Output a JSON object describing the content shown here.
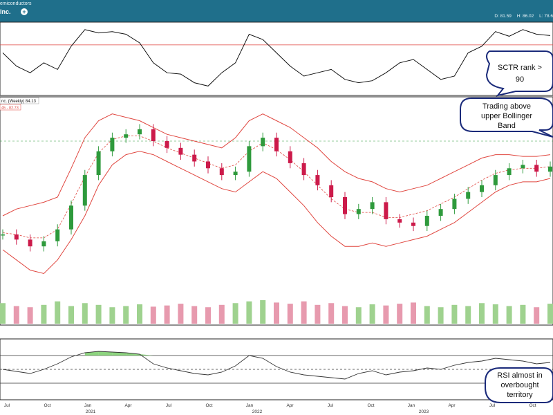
{
  "header": {
    "sector": "emiconductors",
    "symbol": "Inc.",
    "plus_icon": "plus-circle-icon",
    "stats": [
      "D: 81.59",
      "H: 86.02",
      "L: 78.6"
    ]
  },
  "legend": {
    "price_label": "nc. (Weekly) 84.13",
    "bb_label": "45 - 82.73"
  },
  "callouts": {
    "sctr": [
      "SCTR rank >",
      "90"
    ],
    "bollinger": [
      "Trading above",
      "upper Bollinger",
      "Band"
    ],
    "rsi": [
      "RSI almost in",
      "overbought",
      "territory"
    ]
  },
  "colors": {
    "header_bg": "#1f6f8b",
    "up": "#2e9a3c",
    "down": "#cc1a4a",
    "band": "#e0463f",
    "callout_stroke": "#1a2a7a",
    "rsi_fill": "#7fcf70"
  },
  "chart_data": [
    {
      "type": "line",
      "name": "SCTR",
      "x": [
        "2020-06",
        "2020-07",
        "2020-08",
        "2020-09",
        "2020-10",
        "2020-11",
        "2020-12",
        "2021-01",
        "2021-02",
        "2021-03",
        "2021-04",
        "2021-05",
        "2021-06",
        "2021-07",
        "2021-08",
        "2021-09",
        "2021-10",
        "2021-11",
        "2021-12",
        "2022-01",
        "2022-02",
        "2022-03",
        "2022-04",
        "2022-05",
        "2022-06",
        "2022-07",
        "2022-08",
        "2022-09",
        "2022-10",
        "2022-11",
        "2022-12",
        "2023-01",
        "2023-02",
        "2023-03",
        "2023-04",
        "2023-05",
        "2023-06",
        "2023-07",
        "2023-08",
        "2023-09",
        "2023-10"
      ],
      "values": [
        60,
        40,
        30,
        45,
        35,
        70,
        95,
        90,
        92,
        88,
        75,
        45,
        30,
        28,
        15,
        10,
        30,
        45,
        88,
        80,
        60,
        40,
        25,
        30,
        35,
        20,
        15,
        18,
        30,
        45,
        50,
        35,
        20,
        25,
        60,
        70,
        92,
        85,
        95,
        88,
        86
      ],
      "reference_line": 72
    },
    {
      "type": "candlestick",
      "name": "Price (Weekly)",
      "x": [
        "2020-06",
        "2020-07",
        "2020-08",
        "2020-09",
        "2020-10",
        "2020-11",
        "2020-12",
        "2021-01",
        "2021-02",
        "2021-03",
        "2021-04",
        "2021-05",
        "2021-06",
        "2021-07",
        "2021-08",
        "2021-09",
        "2021-10",
        "2021-11",
        "2021-12",
        "2022-01",
        "2022-02",
        "2022-03",
        "2022-04",
        "2022-05",
        "2022-06",
        "2022-07",
        "2022-08",
        "2022-09",
        "2022-10",
        "2022-11",
        "2022-12",
        "2023-01",
        "2023-02",
        "2023-03",
        "2023-04",
        "2023-05",
        "2023-06",
        "2023-07",
        "2023-08",
        "2023-09",
        "2023-10"
      ],
      "close": [
        33,
        30,
        26,
        29,
        36,
        50,
        68,
        82,
        90,
        92,
        95,
        88,
        84,
        80,
        76,
        72,
        68,
        70,
        85,
        90,
        82,
        75,
        68,
        62,
        55,
        45,
        48,
        52,
        42,
        40,
        38,
        44,
        48,
        54,
        58,
        62,
        68,
        72,
        74,
        70,
        73
      ],
      "upper_band": [
        44,
        48,
        50,
        52,
        55,
        72,
        90,
        100,
        104,
        102,
        100,
        96,
        92,
        90,
        88,
        86,
        84,
        90,
        100,
        104,
        100,
        96,
        90,
        84,
        76,
        70,
        66,
        64,
        60,
        58,
        60,
        62,
        66,
        70,
        74,
        78,
        80,
        80,
        79,
        79,
        80
      ],
      "lower_band": [
        24,
        18,
        12,
        10,
        18,
        30,
        44,
        62,
        74,
        80,
        82,
        80,
        76,
        72,
        68,
        64,
        60,
        58,
        64,
        70,
        66,
        58,
        50,
        40,
        32,
        26,
        26,
        28,
        26,
        28,
        30,
        32,
        36,
        40,
        46,
        52,
        58,
        62,
        64,
        64,
        66
      ],
      "middle_band": [
        34,
        33,
        31,
        31,
        36,
        51,
        67,
        81,
        89,
        91,
        91,
        88,
        84,
        81,
        78,
        75,
        72,
        74,
        82,
        87,
        83,
        77,
        70,
        62,
        54,
        48,
        46,
        46,
        43,
        43,
        45,
        47,
        51,
        55,
        60,
        65,
        69,
        71,
        72,
        72,
        73
      ],
      "reference_line": 88,
      "ylim": [
        0,
        110
      ]
    },
    {
      "type": "bar",
      "name": "Volume",
      "x": [
        "2020-06",
        "2020-07",
        "2020-08",
        "2020-09",
        "2020-10",
        "2020-11",
        "2020-12",
        "2021-01",
        "2021-02",
        "2021-03",
        "2021-04",
        "2021-05",
        "2021-06",
        "2021-07",
        "2021-08",
        "2021-09",
        "2021-10",
        "2021-11",
        "2021-12",
        "2022-01",
        "2022-02",
        "2022-03",
        "2022-04",
        "2022-05",
        "2022-06",
        "2022-07",
        "2022-08",
        "2022-09",
        "2022-10",
        "2022-11",
        "2022-12",
        "2023-01",
        "2023-02",
        "2023-03",
        "2023-04",
        "2023-05",
        "2023-06",
        "2023-07",
        "2023-08",
        "2023-09",
        "2023-10"
      ],
      "values": [
        35,
        30,
        28,
        32,
        38,
        30,
        35,
        32,
        28,
        30,
        33,
        29,
        31,
        34,
        30,
        28,
        32,
        35,
        38,
        40,
        36,
        34,
        38,
        32,
        35,
        30,
        28,
        33,
        31,
        34,
        36,
        30,
        28,
        32,
        30,
        35,
        33,
        30,
        32,
        28,
        34
      ]
    },
    {
      "type": "line",
      "name": "RSI",
      "x": [
        "2020-06",
        "2020-07",
        "2020-08",
        "2020-09",
        "2020-10",
        "2020-11",
        "2020-12",
        "2021-01",
        "2021-02",
        "2021-03",
        "2021-04",
        "2021-05",
        "2021-06",
        "2021-07",
        "2021-08",
        "2021-09",
        "2021-10",
        "2021-11",
        "2021-12",
        "2022-01",
        "2022-02",
        "2022-03",
        "2022-04",
        "2022-05",
        "2022-06",
        "2022-07",
        "2022-08",
        "2022-09",
        "2022-10",
        "2022-11",
        "2022-12",
        "2023-01",
        "2023-02",
        "2023-03",
        "2023-04",
        "2023-05",
        "2023-06",
        "2023-07",
        "2023-08",
        "2023-09",
        "2023-10"
      ],
      "values": [
        50,
        47,
        44,
        50,
        58,
        68,
        74,
        76,
        75,
        74,
        72,
        58,
        52,
        48,
        44,
        42,
        46,
        55,
        70,
        66,
        54,
        46,
        42,
        40,
        38,
        36,
        44,
        48,
        42,
        46,
        48,
        52,
        50,
        56,
        60,
        62,
        66,
        64,
        62,
        58,
        60
      ],
      "levels": [
        70,
        50,
        30
      ],
      "ylim": [
        10,
        90
      ]
    }
  ],
  "x_axis": {
    "month_labels": [
      "Jul",
      "Oct",
      "Jan",
      "Apr",
      "Jul",
      "Oct",
      "Jan",
      "Apr",
      "Jul",
      "Oct",
      "Jan",
      "Apr",
      "Jul",
      "Oct"
    ],
    "year_labels": [
      "2021",
      "2022",
      "2023"
    ]
  }
}
